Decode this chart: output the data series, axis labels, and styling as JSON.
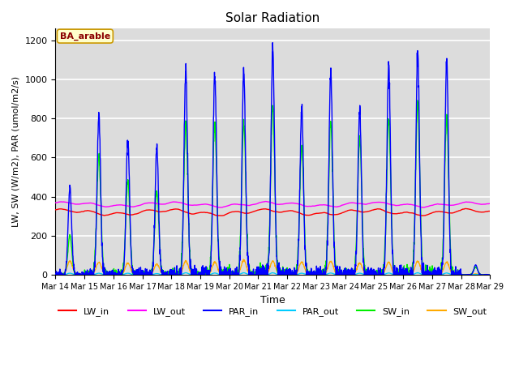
{
  "title": "Solar Radiation",
  "xlabel": "Time",
  "ylabel": "LW, SW (W/m2), PAR (umol/m2/s)",
  "annotation": "BA_arable",
  "ylim": [
    0,
    1260
  ],
  "yticks": [
    0,
    200,
    400,
    600,
    800,
    1000,
    1200
  ],
  "n_days": 15,
  "points_per_day": 144,
  "colors": {
    "LW_in": "#ff0000",
    "LW_out": "#ff00ff",
    "PAR_in": "#0000ff",
    "PAR_out": "#00ccff",
    "SW_in": "#00ee00",
    "SW_out": "#ffaa00"
  },
  "bg_color": "#dcdcdc",
  "grid_color": "#ffffff",
  "par_in_peaks": [
    450,
    820,
    700,
    650,
    1050,
    1030,
    1050,
    1165,
    850,
    1035,
    850,
    1070,
    1140,
    1080,
    50
  ],
  "sw_in_peaks": [
    200,
    610,
    480,
    430,
    770,
    775,
    780,
    870,
    650,
    780,
    700,
    800,
    870,
    810,
    40
  ],
  "sw_out_peaks": [
    70,
    65,
    60,
    55,
    70,
    65,
    75,
    70,
    65,
    70,
    60,
    65,
    70,
    65,
    5
  ],
  "par_out_peaks": [
    8,
    8,
    8,
    6,
    10,
    9,
    10,
    10,
    8,
    9,
    8,
    9,
    10,
    9,
    2
  ],
  "lw_in_base": 320,
  "lw_out_base": 360,
  "lw_amplitude": 15,
  "lw_noise": 4
}
